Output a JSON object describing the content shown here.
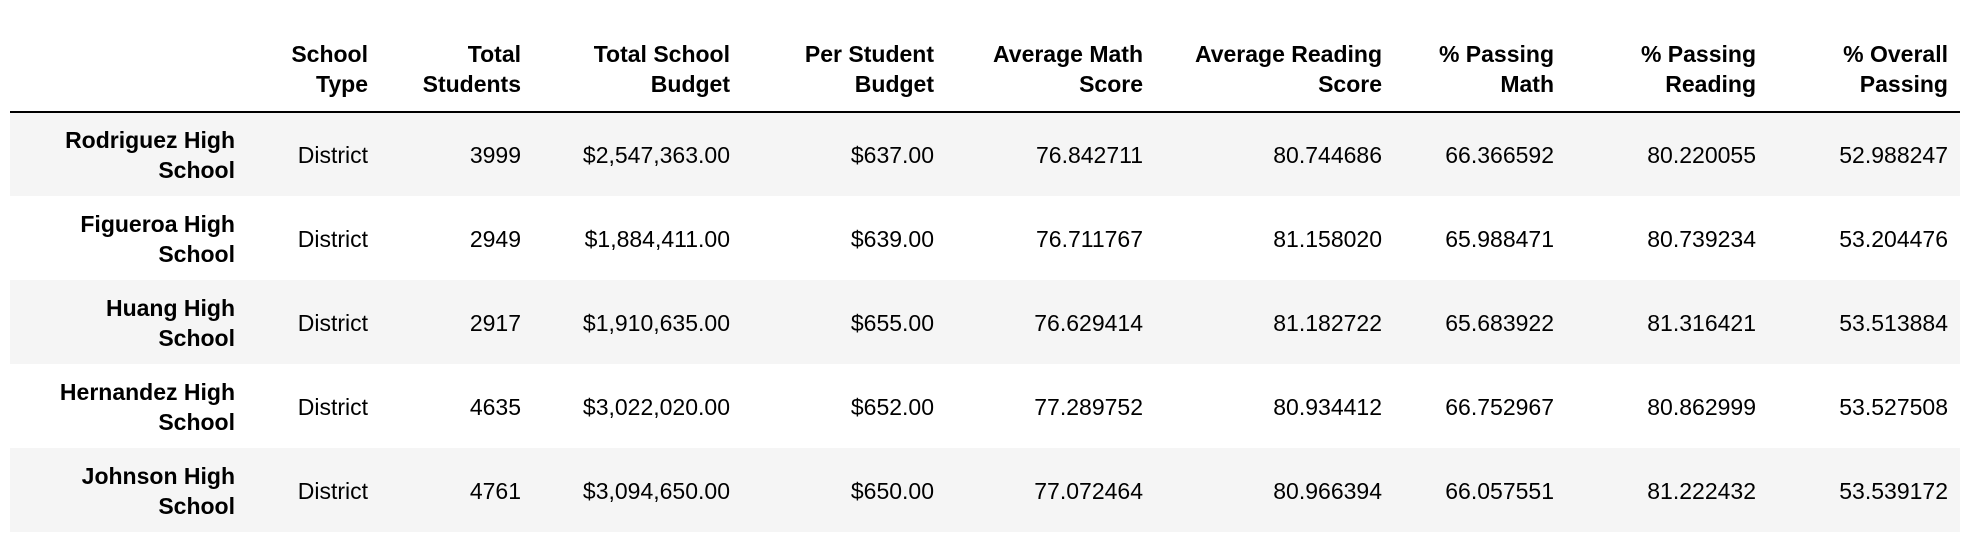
{
  "table": {
    "columns": [
      {
        "line1": "School",
        "line2": "Type"
      },
      {
        "line1": "Total",
        "line2": "Students"
      },
      {
        "line1": "Total School",
        "line2": "Budget"
      },
      {
        "line1": "Per Student",
        "line2": "Budget"
      },
      {
        "line1": "Average Math",
        "line2": "Score"
      },
      {
        "line1": "Average Reading",
        "line2": "Score"
      },
      {
        "line1": "% Passing",
        "line2": "Math"
      },
      {
        "line1": "% Passing",
        "line2": "Reading"
      },
      {
        "line1": "% Overall",
        "line2": "Passing"
      }
    ],
    "rows": [
      {
        "name_line1": "Rodriguez High",
        "name_line2": "School",
        "cells": [
          "District",
          "3999",
          "$2,547,363.00",
          "$637.00",
          "76.842711",
          "80.744686",
          "66.366592",
          "80.220055",
          "52.988247"
        ]
      },
      {
        "name_line1": "Figueroa High",
        "name_line2": "School",
        "cells": [
          "District",
          "2949",
          "$1,884,411.00",
          "$639.00",
          "76.711767",
          "81.158020",
          "65.988471",
          "80.739234",
          "53.204476"
        ]
      },
      {
        "name_line1": "Huang High",
        "name_line2": "School",
        "cells": [
          "District",
          "2917",
          "$1,910,635.00",
          "$655.00",
          "76.629414",
          "81.182722",
          "65.683922",
          "81.316421",
          "53.513884"
        ]
      },
      {
        "name_line1": "Hernandez High",
        "name_line2": "School",
        "cells": [
          "District",
          "4635",
          "$3,022,020.00",
          "$652.00",
          "77.289752",
          "80.934412",
          "66.752967",
          "80.862999",
          "53.527508"
        ]
      },
      {
        "name_line1": "Johnson High",
        "name_line2": "School",
        "cells": [
          "District",
          "4761",
          "$3,094,650.00",
          "$650.00",
          "77.072464",
          "80.966394",
          "66.057551",
          "81.222432",
          "53.539172"
        ]
      }
    ]
  }
}
